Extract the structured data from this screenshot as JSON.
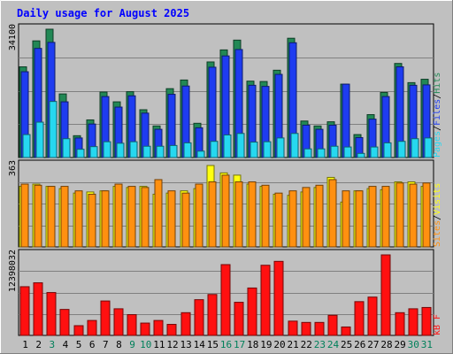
{
  "chart_data": {
    "type": "bar",
    "title": "Daily usage for August 2025",
    "categories": [
      "1",
      "2",
      "3",
      "4",
      "5",
      "6",
      "7",
      "8",
      "9",
      "10",
      "11",
      "12",
      "13",
      "14",
      "15",
      "16",
      "17",
      "18",
      "19",
      "20",
      "21",
      "22",
      "23",
      "24",
      "25",
      "26",
      "27",
      "28",
      "29",
      "30",
      "31"
    ],
    "weekend_days": [
      "3",
      "9",
      "10",
      "16",
      "17",
      "23",
      "24",
      "30",
      "31"
    ],
    "panels": [
      {
        "id": "pages-files-hits",
        "ymax_label": "34100",
        "ymax": 34100,
        "legend": [
          "Pages",
          "/",
          "Files",
          "/",
          "Hits"
        ],
        "series": [
          {
            "name": "Hits",
            "color": "#228855",
            "values": [
              24100,
              31000,
              34100,
              16900,
              5800,
              10000,
              17400,
              14800,
              17500,
              12700,
              8400,
              18300,
              20600,
              9100,
              25400,
              28600,
              31200,
              20300,
              20200,
              23200,
              31700,
              9700,
              8400,
              9500,
              19500,
              6100,
              11400,
              17300,
              25000,
              19900,
              20800
            ]
          },
          {
            "name": "Files",
            "color": "#1e3cf0",
            "values": [
              22800,
              29000,
              30600,
              14800,
              5200,
              8900,
              16200,
              13400,
              16400,
              11800,
              7500,
              16800,
              19000,
              7900,
              24000,
              27000,
              28700,
              19200,
              18900,
              22100,
              30500,
              8600,
              7500,
              8600,
              19500,
              5300,
              10200,
              16200,
              24100,
              19200,
              19300
            ]
          },
          {
            "name": "Pages",
            "color": "#26d8f0",
            "values": [
              6100,
              9400,
              14900,
              5000,
              2200,
              2900,
              4200,
              3800,
              4200,
              3000,
              3000,
              3200,
              3900,
              1700,
              4300,
              6000,
              6400,
              4100,
              4200,
              5200,
              6400,
              2300,
              2300,
              3000,
              2800,
              1100,
              2800,
              3900,
              4300,
              5000,
              5200
            ]
          }
        ]
      },
      {
        "id": "sites-visits",
        "ymax_label": "363",
        "ymax": 363,
        "legend": [
          "Sites",
          "/",
          "Visits"
        ],
        "series": [
          {
            "name": "Visits",
            "color": "#ffff10",
            "values": [
              270,
              280,
              270,
              260,
              240,
              245,
              250,
              270,
              265,
              270,
              235,
              240,
              250,
              260,
              363,
              330,
              320,
              280,
              270,
              235,
              230,
              245,
              265,
              310,
              200,
              250,
              260,
              255,
              290,
              290,
              270
            ]
          },
          {
            "name": "Sites",
            "color": "#ff9010",
            "values": [
              280,
              275,
              270,
              270,
              250,
              235,
              250,
              280,
              270,
              265,
              300,
              250,
              240,
              280,
              290,
              320,
              290,
              290,
              275,
              240,
              250,
              265,
              275,
              300,
              250,
              250,
              270,
              270,
              285,
              280,
              285
            ]
          }
        ]
      },
      {
        "id": "kbytes",
        "ymax_label": "12398032",
        "ymax": 12398032,
        "legend": [
          "kB F"
        ],
        "series": [
          {
            "name": "kB F",
            "color": "#ff1010",
            "values": [
              7500000,
              8100000,
              6600000,
              4000000,
              1500000,
              2300000,
              5300000,
              4100000,
              3200000,
              1900000,
              2300000,
              1700000,
              3500000,
              5500000,
              6300000,
              10900000,
              5100000,
              7300000,
              10800000,
              11400000,
              2200000,
              2000000,
              2000000,
              3100000,
              1300000,
              5200000,
              5900000,
              12398032,
              3500000,
              4100000,
              4300000
            ]
          }
        ]
      }
    ]
  }
}
